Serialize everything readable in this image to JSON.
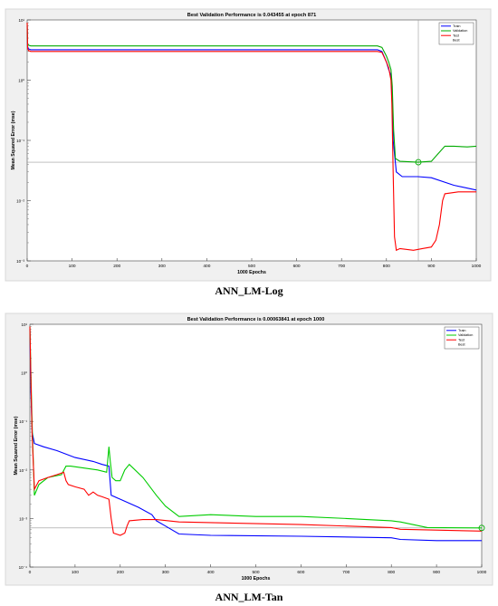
{
  "chart_data": [
    {
      "type": "line",
      "title": "Best Validation Performance is 0.043455 at epoch 871",
      "xlabel": "1000 Epochs",
      "ylabel": "Mean Squared Error  (mse)",
      "caption": "ANN_LM-Log",
      "yscale": "log",
      "xlim": [
        0,
        1000
      ],
      "ylim": [
        0.001,
        10
      ],
      "xticks": [
        "0",
        "100",
        "200",
        "300",
        "400",
        "500",
        "600",
        "700",
        "800",
        "900",
        "1000"
      ],
      "yticks": [
        "10⁻³",
        "10⁻²",
        "10⁻¹",
        "10⁰",
        "10¹"
      ],
      "legend": [
        "Train",
        "Validation",
        "Test",
        "Best"
      ],
      "legend_position": "top-right",
      "best_point": {
        "x": 871,
        "y": 0.043455
      },
      "series": [
        {
          "name": "Train",
          "color": "#0000ff",
          "x": [
            0,
            1,
            3,
            8,
            780,
            790,
            800,
            805,
            810,
            812,
            815,
            818,
            822,
            835,
            870,
            900,
            950,
            1000
          ],
          "y": [
            8,
            3.6,
            3.3,
            3.2,
            3.2,
            3.0,
            2.0,
            1.5,
            1.2,
            0.6,
            0.1,
            0.06,
            0.03,
            0.025,
            0.025,
            0.024,
            0.018,
            0.015
          ]
        },
        {
          "name": "Validation",
          "color": "#00aa00",
          "x": [
            0,
            1,
            3,
            8,
            780,
            790,
            800,
            805,
            810,
            813,
            816,
            820,
            830,
            870,
            900,
            915,
            930,
            950,
            980,
            1000
          ],
          "y": [
            9,
            4.0,
            3.8,
            3.7,
            3.7,
            3.5,
            2.5,
            2.0,
            1.5,
            0.8,
            0.15,
            0.05,
            0.045,
            0.043455,
            0.045,
            0.06,
            0.08,
            0.08,
            0.078,
            0.08
          ]
        },
        {
          "name": "Test",
          "color": "#ff0000",
          "x": [
            0,
            1,
            3,
            8,
            780,
            790,
            800,
            805,
            810,
            812,
            815,
            818,
            822,
            830,
            860,
            880,
            900,
            910,
            918,
            925,
            930,
            960,
            1000
          ],
          "y": [
            9,
            3.4,
            3.1,
            3.0,
            3.0,
            2.9,
            2.0,
            1.6,
            1.0,
            0.4,
            0.03,
            0.0025,
            0.0015,
            0.0016,
            0.0015,
            0.0016,
            0.0017,
            0.0022,
            0.004,
            0.01,
            0.013,
            0.014,
            0.014
          ]
        }
      ]
    },
    {
      "type": "line",
      "title": "Best Validation Performance is 0.00063841 at epoch 1000",
      "xlabel": "1000 Epochs",
      "ylabel": "Mean Squared Error  (mse)",
      "caption": "ANN_LM-Tan",
      "yscale": "log",
      "xlim": [
        0,
        1000
      ],
      "ylim": [
        0.0001,
        10
      ],
      "xticks": [
        "0",
        "100",
        "200",
        "300",
        "400",
        "500",
        "600",
        "700",
        "800",
        "900",
        "1000"
      ],
      "yticks": [
        "10⁻⁴",
        "10⁻³",
        "10⁻²",
        "10⁻¹",
        "10⁰",
        "10¹"
      ],
      "legend": [
        "Train",
        "Validation",
        "Test",
        "Best"
      ],
      "legend_position": "top-right",
      "best_point": {
        "x": 1000,
        "y": 0.00063841
      },
      "series": [
        {
          "name": "Train",
          "color": "#0000ff",
          "x": [
            0,
            2,
            5,
            10,
            30,
            60,
            100,
            140,
            160,
            175,
            180,
            200,
            240,
            270,
            280,
            300,
            330,
            400,
            600,
            800,
            820,
            900,
            1000
          ],
          "y": [
            8,
            0.5,
            0.06,
            0.035,
            0.03,
            0.025,
            0.018,
            0.015,
            0.013,
            0.012,
            0.003,
            0.0025,
            0.0017,
            0.0012,
            0.0009,
            0.0007,
            0.00048,
            0.00045,
            0.00043,
            0.0004,
            0.00037,
            0.00035,
            0.00035
          ]
        },
        {
          "name": "Validation",
          "color": "#00cc00",
          "x": [
            0,
            2,
            5,
            10,
            20,
            40,
            70,
            80,
            90,
            150,
            170,
            175,
            178,
            182,
            190,
            200,
            210,
            220,
            250,
            280,
            300,
            330,
            400,
            500,
            600,
            700,
            800,
            820,
            880,
            1000
          ],
          "y": [
            9,
            1.2,
            0.08,
            0.003,
            0.005,
            0.007,
            0.008,
            0.012,
            0.012,
            0.01,
            0.009,
            0.03,
            0.015,
            0.007,
            0.006,
            0.006,
            0.01,
            0.013,
            0.007,
            0.003,
            0.0018,
            0.0011,
            0.0012,
            0.0011,
            0.0011,
            0.001,
            0.0009,
            0.00085,
            0.00065,
            0.00063841
          ]
        },
        {
          "name": "Test",
          "color": "#ff0000",
          "x": [
            0,
            2,
            5,
            10,
            20,
            40,
            60,
            75,
            80,
            85,
            100,
            120,
            130,
            140,
            150,
            160,
            175,
            180,
            185,
            200,
            210,
            215,
            220,
            250,
            280,
            330,
            600,
            800,
            820,
            1000
          ],
          "y": [
            9,
            1.0,
            0.05,
            0.004,
            0.006,
            0.007,
            0.008,
            0.009,
            0.006,
            0.005,
            0.0045,
            0.004,
            0.003,
            0.0035,
            0.003,
            0.0028,
            0.0025,
            0.001,
            0.0005,
            0.00045,
            0.0005,
            0.0007,
            0.0009,
            0.00095,
            0.00095,
            0.00085,
            0.00075,
            0.00065,
            0.0006,
            0.00055
          ]
        }
      ]
    }
  ]
}
